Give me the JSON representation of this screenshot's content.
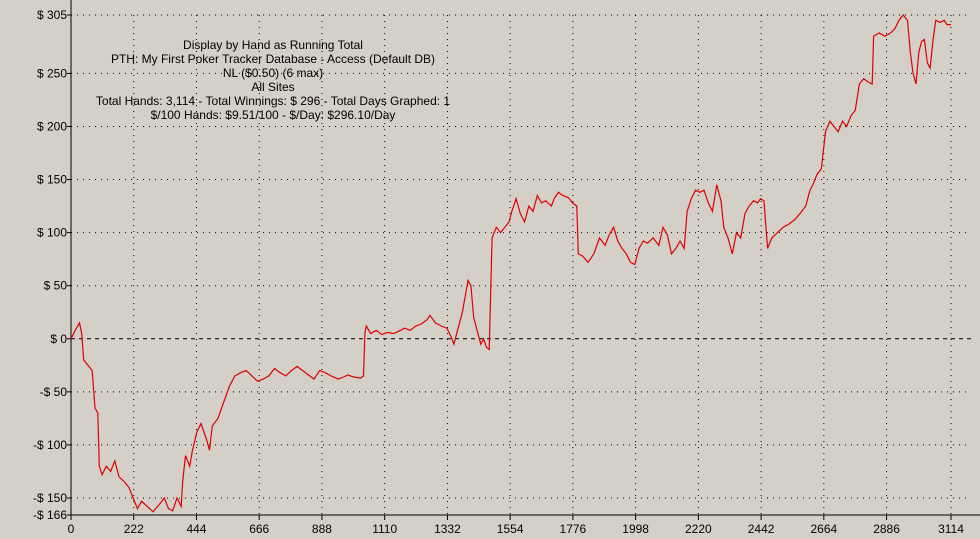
{
  "chart_data": {
    "type": "line",
    "title_lines": [
      "Display by Hand as Running Total",
      "PTH: My First Poker Tracker Database - Access (Default DB)",
      "NL ($0.50) (6 max)",
      "All Sites",
      "Total Hands: 3,114 - Total Winnings: $ 296 - Total Days Graphed: 1",
      "$/100 Hands: $9.51/100 - $/Day: $296.10/Day"
    ],
    "xlabel": "",
    "ylabel": "",
    "xlim": [
      0,
      3114
    ],
    "ylim": [
      -166,
      305
    ],
    "x_ticks": [
      0,
      222,
      444,
      666,
      888,
      1110,
      1332,
      1554,
      1776,
      1998,
      2220,
      2442,
      2664,
      2886,
      3114
    ],
    "y_ticks": [
      {
        "value": 305,
        "label": "$ 305"
      },
      {
        "value": 250,
        "label": "$ 250"
      },
      {
        "value": 200,
        "label": "$ 200"
      },
      {
        "value": 150,
        "label": "$ 150"
      },
      {
        "value": 100,
        "label": "$ 100"
      },
      {
        "value": 50,
        "label": "$ 50"
      },
      {
        "value": 0,
        "label": "$ 0"
      },
      {
        "value": -50,
        "label": "-$ 50"
      },
      {
        "value": -100,
        "label": "-$ 100"
      },
      {
        "value": -150,
        "label": "-$ 150"
      },
      {
        "value": -166,
        "label": "-$ 166"
      }
    ],
    "grid": "dotted",
    "zero_line": "dashed",
    "series": [
      {
        "color": "#dd0000",
        "points": [
          [
            0,
            0
          ],
          [
            15,
            8
          ],
          [
            30,
            15
          ],
          [
            38,
            5
          ],
          [
            45,
            -20
          ],
          [
            60,
            -25
          ],
          [
            75,
            -30
          ],
          [
            85,
            -65
          ],
          [
            95,
            -70
          ],
          [
            100,
            -120
          ],
          [
            110,
            -128
          ],
          [
            125,
            -120
          ],
          [
            140,
            -125
          ],
          [
            155,
            -115
          ],
          [
            170,
            -130
          ],
          [
            190,
            -135
          ],
          [
            205,
            -140
          ],
          [
            220,
            -150
          ],
          [
            235,
            -160
          ],
          [
            250,
            -153
          ],
          [
            270,
            -158
          ],
          [
            290,
            -163
          ],
          [
            310,
            -157
          ],
          [
            330,
            -150
          ],
          [
            345,
            -160
          ],
          [
            360,
            -162
          ],
          [
            375,
            -150
          ],
          [
            390,
            -158
          ],
          [
            395,
            -135
          ],
          [
            405,
            -110
          ],
          [
            420,
            -120
          ],
          [
            430,
            -105
          ],
          [
            445,
            -88
          ],
          [
            460,
            -80
          ],
          [
            480,
            -95
          ],
          [
            490,
            -105
          ],
          [
            500,
            -82
          ],
          [
            520,
            -75
          ],
          [
            540,
            -60
          ],
          [
            560,
            -45
          ],
          [
            580,
            -35
          ],
          [
            600,
            -32
          ],
          [
            620,
            -30
          ],
          [
            640,
            -35
          ],
          [
            660,
            -40
          ],
          [
            680,
            -38
          ],
          [
            700,
            -35
          ],
          [
            720,
            -28
          ],
          [
            740,
            -32
          ],
          [
            760,
            -35
          ],
          [
            780,
            -30
          ],
          [
            800,
            -26
          ],
          [
            820,
            -30
          ],
          [
            840,
            -34
          ],
          [
            860,
            -38
          ],
          [
            880,
            -30
          ],
          [
            900,
            -32
          ],
          [
            920,
            -35
          ],
          [
            945,
            -38
          ],
          [
            965,
            -36
          ],
          [
            980,
            -34
          ],
          [
            1000,
            -36
          ],
          [
            1025,
            -37
          ],
          [
            1035,
            -35
          ],
          [
            1040,
            5
          ],
          [
            1045,
            12
          ],
          [
            1060,
            5
          ],
          [
            1080,
            8
          ],
          [
            1100,
            4
          ],
          [
            1120,
            6
          ],
          [
            1140,
            5
          ],
          [
            1160,
            7
          ],
          [
            1180,
            10
          ],
          [
            1200,
            8
          ],
          [
            1220,
            12
          ],
          [
            1240,
            14
          ],
          [
            1260,
            18
          ],
          [
            1270,
            22
          ],
          [
            1290,
            15
          ],
          [
            1310,
            12
          ],
          [
            1330,
            10
          ],
          [
            1345,
            2
          ],
          [
            1355,
            -5
          ],
          [
            1365,
            5
          ],
          [
            1375,
            15
          ],
          [
            1385,
            25
          ],
          [
            1395,
            40
          ],
          [
            1405,
            55
          ],
          [
            1415,
            50
          ],
          [
            1425,
            20
          ],
          [
            1440,
            5
          ],
          [
            1450,
            -5
          ],
          [
            1460,
            0
          ],
          [
            1470,
            -8
          ],
          [
            1480,
            -10
          ],
          [
            1490,
            95
          ],
          [
            1505,
            105
          ],
          [
            1520,
            100
          ],
          [
            1535,
            105
          ],
          [
            1550,
            110
          ],
          [
            1560,
            120
          ],
          [
            1575,
            132
          ],
          [
            1590,
            118
          ],
          [
            1605,
            110
          ],
          [
            1620,
            125
          ],
          [
            1635,
            120
          ],
          [
            1650,
            135
          ],
          [
            1665,
            128
          ],
          [
            1680,
            130
          ],
          [
            1700,
            125
          ],
          [
            1710,
            132
          ],
          [
            1725,
            138
          ],
          [
            1740,
            135
          ],
          [
            1760,
            133
          ],
          [
            1775,
            128
          ],
          [
            1790,
            125
          ],
          [
            1795,
            80
          ],
          [
            1810,
            78
          ],
          [
            1830,
            72
          ],
          [
            1850,
            80
          ],
          [
            1870,
            95
          ],
          [
            1890,
            88
          ],
          [
            1905,
            98
          ],
          [
            1920,
            105
          ],
          [
            1935,
            92
          ],
          [
            1950,
            85
          ],
          [
            1965,
            80
          ],
          [
            1980,
            72
          ],
          [
            1995,
            70
          ],
          [
            2010,
            85
          ],
          [
            2025,
            92
          ],
          [
            2040,
            90
          ],
          [
            2060,
            95
          ],
          [
            2080,
            88
          ],
          [
            2095,
            105
          ],
          [
            2110,
            98
          ],
          [
            2125,
            80
          ],
          [
            2140,
            85
          ],
          [
            2155,
            92
          ],
          [
            2170,
            85
          ],
          [
            2180,
            120
          ],
          [
            2195,
            132
          ],
          [
            2210,
            140
          ],
          [
            2225,
            138
          ],
          [
            2240,
            140
          ],
          [
            2255,
            128
          ],
          [
            2270,
            120
          ],
          [
            2285,
            145
          ],
          [
            2300,
            130
          ],
          [
            2310,
            105
          ],
          [
            2325,
            95
          ],
          [
            2340,
            80
          ],
          [
            2355,
            100
          ],
          [
            2370,
            95
          ],
          [
            2385,
            118
          ],
          [
            2400,
            125
          ],
          [
            2415,
            130
          ],
          [
            2430,
            128
          ],
          [
            2440,
            132
          ],
          [
            2452,
            130
          ],
          [
            2465,
            85
          ],
          [
            2480,
            95
          ],
          [
            2500,
            100
          ],
          [
            2520,
            105
          ],
          [
            2540,
            108
          ],
          [
            2560,
            112
          ],
          [
            2580,
            118
          ],
          [
            2600,
            125
          ],
          [
            2615,
            140
          ],
          [
            2625,
            145
          ],
          [
            2640,
            155
          ],
          [
            2655,
            160
          ],
          [
            2670,
            195
          ],
          [
            2685,
            205
          ],
          [
            2700,
            200
          ],
          [
            2715,
            195
          ],
          [
            2730,
            205
          ],
          [
            2745,
            200
          ],
          [
            2760,
            210
          ],
          [
            2775,
            215
          ],
          [
            2790,
            240
          ],
          [
            2805,
            245
          ],
          [
            2820,
            242
          ],
          [
            2835,
            240
          ],
          [
            2840,
            285
          ],
          [
            2860,
            288
          ],
          [
            2880,
            285
          ],
          [
            2900,
            288
          ],
          [
            2915,
            292
          ],
          [
            2930,
            300
          ],
          [
            2945,
            305
          ],
          [
            2960,
            300
          ],
          [
            2970,
            270
          ],
          [
            2980,
            250
          ],
          [
            2990,
            240
          ],
          [
            3000,
            270
          ],
          [
            3010,
            280
          ],
          [
            3020,
            282
          ],
          [
            3030,
            260
          ],
          [
            3040,
            255
          ],
          [
            3050,
            280
          ],
          [
            3060,
            300
          ],
          [
            3075,
            298
          ],
          [
            3090,
            300
          ],
          [
            3100,
            296
          ],
          [
            3114,
            296
          ]
        ]
      }
    ]
  },
  "colors": {
    "background": "#d4d0c8",
    "axis": "#000000",
    "grid": "#000000",
    "line": "#dd0000"
  }
}
